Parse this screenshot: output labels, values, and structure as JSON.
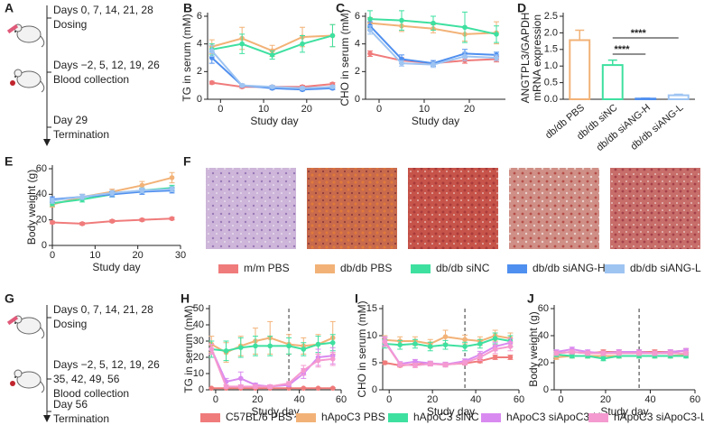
{
  "timeline_top": {
    "label": "A",
    "dosing_days": "Days 0, 7, 14, 21, 28",
    "dosing": "Dosing",
    "collection_days": "Days −2, 5, 12, 19, 26",
    "collection": "Blood collection",
    "end_day": "Day 29",
    "termination": "Termination"
  },
  "histology": {
    "label": "F"
  },
  "timeline_bottom": {
    "label": "G",
    "dosing_days": "Days 0, 7, 14, 21, 28",
    "dosing": "Dosing",
    "collection_days": [
      "Days −2, 5, 12, 19, 26",
      "35, 42, 49, 56"
    ],
    "collection": "Blood collection",
    "end_day": "Day 56",
    "termination": "Termination"
  },
  "chart_data": [
    {
      "type": "line",
      "label": "B",
      "ylabel": [
        "TG in serum (mM)"
      ],
      "xlabel": "Study day",
      "x": [
        -2,
        5,
        12,
        19,
        26
      ],
      "xlim": [
        -3,
        28
      ],
      "xticks": [
        0,
        10,
        20
      ],
      "ylim": [
        0,
        6
      ],
      "yticks": [
        0,
        2,
        4,
        6
      ],
      "series": [
        {
          "name": "m/m PBS",
          "color": "#f07b7b",
          "values": [
            1.2,
            0.9,
            0.9,
            0.9,
            1.1
          ],
          "errors": [
            0.1,
            0.1,
            0.1,
            0.1,
            0.1
          ]
        },
        {
          "name": "db/db PBS",
          "color": "#f2b277",
          "values": [
            3.8,
            4.4,
            3.5,
            4.5,
            4.6
          ],
          "errors": [
            0.5,
            0.8,
            0.4,
            0.7,
            0.8
          ]
        },
        {
          "name": "db/db siNC",
          "color": "#3ee0a0",
          "values": [
            3.6,
            4.0,
            3.2,
            4.0,
            4.6
          ],
          "errors": [
            0.4,
            0.7,
            0.3,
            0.6,
            0.8
          ]
        },
        {
          "name": "db/db siANG-H",
          "color": "#4f8fef",
          "values": [
            3.0,
            1.0,
            0.8,
            0.7,
            0.8
          ],
          "errors": [
            0.4,
            0.1,
            0.1,
            0.1,
            0.1
          ]
        },
        {
          "name": "db/db siANG-L",
          "color": "#9ec4f2",
          "values": [
            3.5,
            1.0,
            0.9,
            0.8,
            0.9
          ],
          "errors": [
            0.4,
            0.1,
            0.1,
            0.1,
            0.1
          ]
        }
      ]
    },
    {
      "type": "line",
      "label": "C",
      "ylabel": [
        "CHO in serum (mM)"
      ],
      "xlabel": "Study day",
      "x": [
        -2,
        5,
        12,
        19,
        26
      ],
      "xlim": [
        -3,
        28
      ],
      "xticks": [
        0,
        10,
        20
      ],
      "ylim": [
        0,
        6
      ],
      "yticks": [
        0,
        2,
        4,
        6
      ],
      "series": [
        {
          "name": "m/m PBS",
          "color": "#f07b7b",
          "values": [
            3.3,
            2.8,
            2.6,
            2.8,
            2.9
          ],
          "errors": [
            0.2,
            0.2,
            0.1,
            0.2,
            0.2
          ]
        },
        {
          "name": "db/db PBS",
          "color": "#f2b277",
          "values": [
            5.5,
            5.3,
            5.1,
            4.7,
            4.8
          ],
          "errors": [
            0.4,
            0.4,
            0.3,
            0.5,
            0.8
          ]
        },
        {
          "name": "db/db siNC",
          "color": "#3ee0a0",
          "values": [
            5.8,
            5.7,
            5.5,
            5.2,
            4.7
          ],
          "errors": [
            0.6,
            0.7,
            0.5,
            1.1,
            0.6
          ]
        },
        {
          "name": "db/db siANG-H",
          "color": "#4f8fef",
          "values": [
            5.3,
            2.9,
            2.6,
            3.3,
            3.2
          ],
          "errors": [
            0.3,
            0.3,
            0.2,
            0.3,
            0.2
          ]
        },
        {
          "name": "db/db siANG-L",
          "color": "#9ec4f2",
          "values": [
            5.0,
            2.6,
            2.5,
            3.1,
            3.0
          ],
          "errors": [
            0.3,
            0.2,
            0.2,
            0.3,
            0.2
          ]
        }
      ]
    },
    {
      "type": "bar",
      "label": "D",
      "ylabel": [
        "ANGTPL3/GAPDH",
        "mRNA expression"
      ],
      "categories": [
        "db/db PBS",
        "db/db siNC",
        "db/db siANG-H",
        "db/db siANG-L"
      ],
      "values": [
        1.78,
        1.03,
        0.02,
        0.12
      ],
      "errors": [
        0.3,
        0.15,
        0.01,
        0.03
      ],
      "colors": [
        "#f2b277",
        "#3ee0a0",
        "#4f8fef",
        "#9ec4f2"
      ],
      "ylim": [
        0,
        2.5
      ],
      "yticks": [
        {
          "value": 0,
          "label": "0.0"
        },
        0.5,
        {
          "value": 1,
          "label": "1.0"
        },
        1.5,
        {
          "value": 2,
          "label": "2.0"
        },
        2.5
      ],
      "significance": [
        "****",
        "****"
      ]
    },
    {
      "type": "line",
      "label": "E",
      "ylabel": [
        "Body weight (g)"
      ],
      "xlabel": "Study day",
      "x": [
        0,
        7,
        14,
        21,
        28
      ],
      "xlim": [
        0,
        30
      ],
      "xticks": [
        0,
        10,
        20,
        30
      ],
      "ylim": [
        0,
        60
      ],
      "yticks": [
        0,
        20,
        40,
        60
      ],
      "series": [
        {
          "name": "m/m PBS",
          "color": "#f07b7b",
          "values": [
            18,
            17,
            19,
            20,
            21
          ],
          "errors": [
            1,
            1,
            1,
            1,
            1
          ]
        },
        {
          "name": "db/db PBS",
          "color": "#f2b277",
          "values": [
            32,
            38,
            42,
            47,
            53
          ],
          "errors": [
            2,
            2,
            2,
            3,
            4
          ]
        },
        {
          "name": "db/db siNC",
          "color": "#3ee0a0",
          "values": [
            33,
            36,
            40,
            43,
            45
          ],
          "errors": [
            2,
            2,
            2,
            2,
            2
          ]
        },
        {
          "name": "db/db siANG-H",
          "color": "#4f8fef",
          "values": [
            36,
            38,
            40,
            42,
            43
          ],
          "errors": [
            2,
            2,
            2,
            2,
            2
          ]
        },
        {
          "name": "db/db siANG-L",
          "color": "#9ec4f2",
          "values": [
            35,
            38,
            41,
            43,
            44
          ],
          "errors": [
            2,
            2,
            2,
            2,
            2
          ]
        }
      ]
    },
    {
      "type": "line",
      "label": "H",
      "ylabel": [
        "TG in serum (mM)"
      ],
      "xlabel": "Study day",
      "x": [
        -2,
        5,
        12,
        19,
        26,
        35,
        42,
        49,
        56
      ],
      "xlim": [
        -3,
        60
      ],
      "xticks": [
        0,
        20,
        40,
        60
      ],
      "ylim": [
        0,
        50
      ],
      "yticks": [
        0,
        10,
        20,
        30,
        40,
        50
      ],
      "vline": 35,
      "series": [
        {
          "name": "C57BL/6 PBS",
          "color": "#f07b7b",
          "values": [
            1,
            1,
            1,
            1,
            1,
            1,
            1,
            1,
            1
          ],
          "errors": [
            0.3,
            0.3,
            0.3,
            0.3,
            0.3,
            0.3,
            0.3,
            0.3,
            0.3
          ]
        },
        {
          "name": "hApoC3 PBS",
          "color": "#f2b277",
          "values": [
            28,
            23,
            27,
            30,
            32,
            28,
            27,
            28,
            32
          ],
          "errors": [
            5,
            6,
            6,
            8,
            10,
            6,
            5,
            6,
            10
          ]
        },
        {
          "name": "hApoC3 siNC",
          "color": "#3ee0a0",
          "values": [
            25,
            24,
            26,
            27,
            27,
            27,
            25,
            28,
            29
          ],
          "errors": [
            5,
            6,
            6,
            6,
            6,
            5,
            4,
            5,
            5
          ]
        },
        {
          "name": "hApoC3 siApoC3-H",
          "color": "#d98af0",
          "values": [
            25,
            5,
            7,
            3,
            2,
            3,
            10,
            20,
            21
          ],
          "errors": [
            3,
            2,
            4,
            1,
            1,
            1,
            3,
            5,
            5
          ]
        },
        {
          "name": "hApoC3 siApoC3-L",
          "color": "#f59ad0",
          "values": [
            25,
            2,
            2,
            2,
            2,
            4,
            12,
            18,
            19
          ],
          "errors": [
            3,
            1,
            1,
            1,
            1,
            1,
            3,
            4,
            4
          ]
        }
      ]
    },
    {
      "type": "line",
      "label": "I",
      "ylabel": [
        "CHO in serum (mM)"
      ],
      "xlabel": "Study day",
      "x": [
        -2,
        5,
        12,
        19,
        26,
        35,
        42,
        49,
        56
      ],
      "xlim": [
        -3,
        60
      ],
      "xticks": [
        0,
        20,
        40,
        60
      ],
      "ylim": [
        0,
        15
      ],
      "yticks": [
        0,
        5,
        10,
        15
      ],
      "vline": 35,
      "series": [
        {
          "name": "C57BL/6 PBS",
          "color": "#f07b7b",
          "values": [
            5,
            4.5,
            4.7,
            4.8,
            4.7,
            4.9,
            5.3,
            6,
            6
          ],
          "errors": [
            0.3,
            0.3,
            0.3,
            0.3,
            0.3,
            0.3,
            0.3,
            0.4,
            0.4
          ]
        },
        {
          "name": "hApoC3 PBS",
          "color": "#f2b277",
          "values": [
            9.2,
            9,
            9,
            8.5,
            9.8,
            9.3,
            9,
            10,
            9.5
          ],
          "errors": [
            0.8,
            0.8,
            0.8,
            0.8,
            1.2,
            0.8,
            0.8,
            1,
            1
          ]
        },
        {
          "name": "hApoC3 siNC",
          "color": "#3ee0a0",
          "values": [
            8.5,
            8.3,
            8.5,
            8,
            8.3,
            8,
            8.5,
            9.5,
            9
          ],
          "errors": [
            0.8,
            0.8,
            0.8,
            0.8,
            0.8,
            0.8,
            0.8,
            1,
            1
          ]
        },
        {
          "name": "hApoC3 siApoC3-H",
          "color": "#d98af0",
          "values": [
            9,
            4.8,
            5.2,
            4.9,
            4.7,
            5.3,
            6.5,
            8,
            8.7
          ],
          "errors": [
            0.8,
            0.4,
            0.4,
            0.4,
            0.4,
            0.4,
            0.6,
            0.8,
            0.8
          ]
        },
        {
          "name": "hApoC3 siApoC3-L",
          "color": "#f59ad0",
          "values": [
            8.8,
            4.7,
            4.5,
            4.8,
            4.6,
            5,
            6,
            7.5,
            8
          ],
          "errors": [
            0.8,
            0.4,
            0.4,
            0.4,
            0.4,
            0.4,
            0.6,
            0.8,
            0.8
          ]
        }
      ]
    },
    {
      "type": "line",
      "label": "J",
      "ylabel": [
        "Body weight (g)"
      ],
      "xlabel": "Study day",
      "x": [
        -2,
        5,
        12,
        19,
        26,
        35,
        42,
        49,
        56
      ],
      "xlim": [
        -3,
        60
      ],
      "xticks": [
        0,
        20,
        40,
        60
      ],
      "ylim": [
        0,
        60
      ],
      "yticks": [
        0,
        20,
        40,
        60
      ],
      "vline": 35,
      "series": [
        {
          "name": "C57BL/6 PBS",
          "color": "#f07b7b",
          "values": [
            27,
            28,
            27,
            28,
            28,
            28,
            28,
            28,
            29
          ],
          "errors": [
            1.5,
            1.5,
            1.5,
            1.5,
            1.5,
            1.5,
            1.5,
            1.5,
            1.5
          ]
        },
        {
          "name": "hApoC3 PBS",
          "color": "#f2b277",
          "values": [
            24,
            25,
            25,
            25,
            25,
            25,
            25,
            25,
            26
          ],
          "errors": [
            1.5,
            1.5,
            1.5,
            1.5,
            1.5,
            1.5,
            1.5,
            1.5,
            1.5
          ]
        },
        {
          "name": "hApoC3 siNC",
          "color": "#3ee0a0",
          "values": [
            26,
            25,
            25,
            23,
            25,
            25,
            25,
            25,
            25
          ],
          "errors": [
            1.5,
            1.5,
            1.5,
            1.5,
            1.5,
            1.5,
            1.5,
            1.5,
            1.5
          ]
        },
        {
          "name": "hApoC3 siApoC3-H",
          "color": "#d98af0",
          "values": [
            28,
            30,
            28,
            27,
            28,
            28,
            27,
            28,
            29
          ],
          "errors": [
            1.5,
            1.5,
            1.5,
            1.5,
            1.5,
            1.5,
            1.5,
            1.5,
            1.5
          ]
        },
        {
          "name": "hApoC3 siApoC3-L",
          "color": "#f59ad0",
          "values": [
            27,
            28,
            27,
            27,
            27,
            27,
            27,
            27,
            27
          ],
          "errors": [
            1.5,
            1.5,
            1.5,
            1.5,
            1.5,
            1.5,
            1.5,
            1.5,
            1.5
          ]
        }
      ]
    }
  ]
}
